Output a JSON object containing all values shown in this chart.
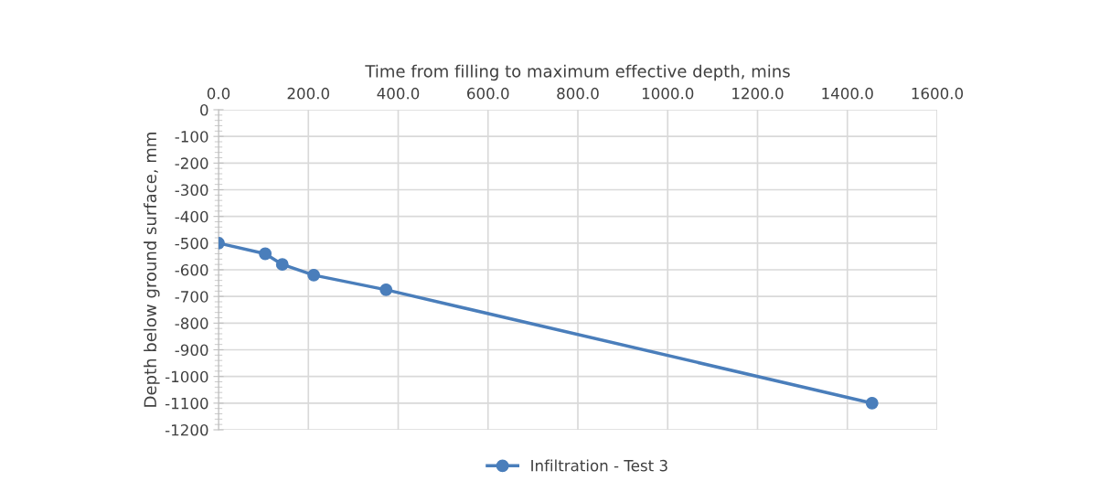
{
  "chart_data": {
    "type": "line",
    "xlabel": "Time from filling to maximum effective depth, mins",
    "ylabel": "Depth below ground surface, mm",
    "x": [
      0,
      104,
      142,
      212,
      373,
      1455
    ],
    "series": [
      {
        "name": "Infiltration - Test 3",
        "color": "#4a7ebb",
        "values": [
          -500,
          -540,
          -580,
          -620,
          -675,
          -1100
        ]
      }
    ],
    "xlim": [
      0,
      1600
    ],
    "xticks": [
      {
        "value": 0,
        "label": "0.0"
      },
      {
        "value": 200,
        "label": "200.0"
      },
      {
        "value": 400,
        "label": "400.0"
      },
      {
        "value": 600,
        "label": "600.0"
      },
      {
        "value": 800,
        "label": "800.0"
      },
      {
        "value": 1000,
        "label": "1000.0"
      },
      {
        "value": 1200,
        "label": "1200.0"
      },
      {
        "value": 1400,
        "label": "1400.0"
      },
      {
        "value": 1600,
        "label": "1600.0"
      }
    ],
    "ylim": [
      -1200,
      0
    ],
    "yticks": [
      0,
      -100,
      -200,
      -300,
      -400,
      -500,
      -600,
      -700,
      -800,
      -900,
      -1000,
      -1100,
      -1200
    ],
    "grid": true,
    "legend": "bottom",
    "marker": "circle",
    "line_style": "solid"
  }
}
